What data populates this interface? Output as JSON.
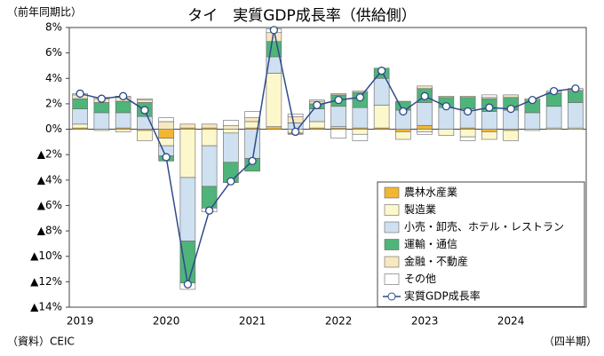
{
  "chart_data": {
    "type": "bar",
    "title": "タイ　実質GDP成長率（供給側）",
    "y_label": "（前年同期比）",
    "source": "（資料）CEIC",
    "x_label": "（四半期）",
    "categories": [
      "2019",
      null,
      null,
      null,
      "2020",
      null,
      null,
      null,
      "2021",
      null,
      null,
      null,
      "2022",
      null,
      null,
      null,
      "2023",
      null,
      null,
      null,
      "2024",
      null,
      null,
      null
    ],
    "ylim": [
      -14,
      8
    ],
    "yticks": [
      {
        "value": -14,
        "label": "▲14%"
      },
      {
        "value": -12,
        "label": "▲12%"
      },
      {
        "value": -10,
        "label": "▲10%"
      },
      {
        "value": -8,
        "label": "▲8%"
      },
      {
        "value": -6,
        "label": "▲6%"
      },
      {
        "value": -4,
        "label": "▲4%"
      },
      {
        "value": -2,
        "label": "▲2%"
      },
      {
        "value": 0,
        "label": "0%"
      },
      {
        "value": 2,
        "label": "2%"
      },
      {
        "value": 4,
        "label": "4%"
      },
      {
        "value": 6,
        "label": "6%"
      },
      {
        "value": 8,
        "label": "8%"
      }
    ],
    "series": [
      {
        "name": "農林水産業",
        "color": "#f2b632",
        "values": [
          0.1,
          0.0,
          0.1,
          -0.1,
          -0.7,
          0.1,
          0.1,
          0.0,
          0.1,
          0.2,
          0.0,
          0.1,
          0.1,
          0.1,
          0.1,
          -0.2,
          0.3,
          0.0,
          0.1,
          -0.2,
          -0.1,
          0.0,
          0.0,
          0.0
        ]
      },
      {
        "name": "製造業",
        "color": "#fdf8cc",
        "values": [
          0.3,
          -0.1,
          -0.2,
          -0.8,
          -0.6,
          -3.8,
          -1.3,
          -0.3,
          0.5,
          4.2,
          -0.3,
          0.5,
          0.1,
          -0.4,
          1.8,
          -0.6,
          -0.2,
          -0.5,
          -0.6,
          -0.6,
          -0.8,
          -0.1,
          0.1,
          0.1
        ]
      },
      {
        "name": "小売・卸売、ホテル・レストラン",
        "color": "#cfe0f0",
        "values": [
          1.2,
          1.3,
          1.2,
          1.0,
          -0.8,
          -5.0,
          -3.2,
          -2.3,
          -2.3,
          1.3,
          0.5,
          1.0,
          1.6,
          1.6,
          2.1,
          1.5,
          1.8,
          1.7,
          1.5,
          1.4,
          1.5,
          1.3,
          1.7,
          2.0
        ]
      },
      {
        "name": "運輸・通信",
        "color": "#4fb47a",
        "values": [
          0.8,
          0.8,
          0.9,
          1.1,
          -0.4,
          -3.3,
          -1.7,
          -1.6,
          -1.0,
          1.2,
          -0.1,
          0.4,
          0.9,
          1.2,
          0.8,
          0.7,
          1.1,
          0.8,
          0.9,
          1.0,
          1.0,
          1.0,
          1.0,
          0.9
        ]
      },
      {
        "name": "金融・不動産",
        "color": "#f7e8c0",
        "values": [
          0.3,
          0.3,
          0.3,
          0.2,
          0.6,
          0.3,
          0.3,
          0.3,
          0.3,
          0.7,
          0.5,
          0.2,
          0.1,
          0.1,
          0.0,
          0.0,
          0.2,
          0.1,
          0.1,
          0.1,
          0.2,
          0.1,
          0.1,
          0.1
        ]
      },
      {
        "name": "その他",
        "color": "#ffffff",
        "values": [
          0.1,
          0.1,
          0.1,
          0.1,
          0.3,
          -0.5,
          -0.3,
          0.4,
          0.5,
          0.3,
          0.2,
          0.1,
          -0.7,
          -0.5,
          0.0,
          0.0,
          -0.2,
          0.0,
          -0.3,
          0.2,
          0.0,
          0.0,
          0.1,
          0.1
        ]
      },
      {
        "name": "実質GDP成長率",
        "type": "line",
        "color": "#2e4b8a",
        "values": [
          2.8,
          2.4,
          2.6,
          1.5,
          -2.2,
          -12.2,
          -6.4,
          -4.1,
          -2.5,
          7.8,
          -0.2,
          1.9,
          2.3,
          2.5,
          4.6,
          1.4,
          2.6,
          1.8,
          1.4,
          1.7,
          1.6,
          2.3,
          3.0,
          3.2
        ]
      }
    ]
  }
}
